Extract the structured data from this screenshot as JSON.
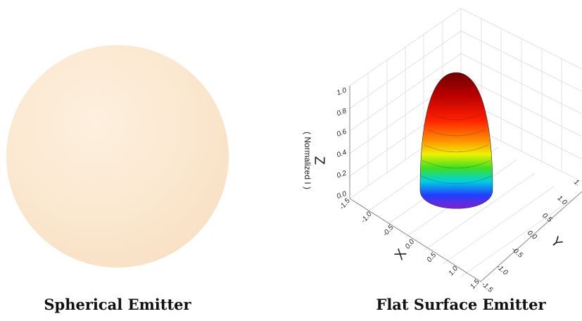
{
  "left_panel": {
    "caption": "Spherical Emitter"
  },
  "right_panel": {
    "caption": "Flat Surface Emitter",
    "z_axis": {
      "title": "Z",
      "subtitle": "( Normalized I )",
      "ticks": [
        "0.0",
        "0.2",
        "0.4",
        "0.6",
        "0.8",
        "1.0"
      ]
    },
    "x_axis": {
      "title": "X",
      "ticks": [
        "-1.5",
        "-1.0",
        "-0.5",
        "0.0",
        "0.5",
        "1.0",
        "1.5"
      ]
    },
    "y_axis": {
      "title": "Y",
      "ticks": [
        "-1.5",
        "-1.0",
        "-0.5",
        "0.0",
        "0.5",
        "1.0",
        "1."
      ]
    }
  }
}
